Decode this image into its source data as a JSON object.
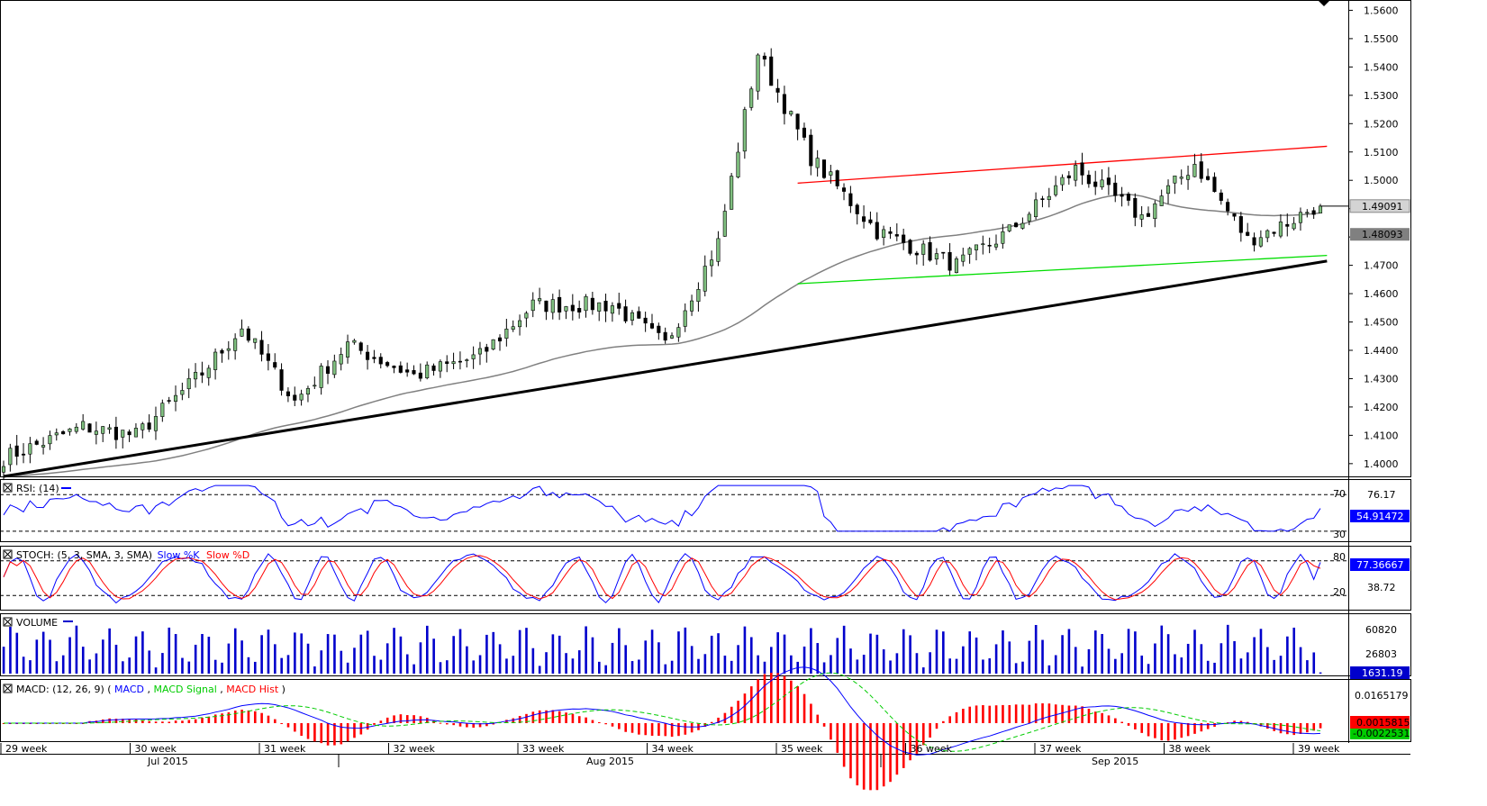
{
  "chart_data": {
    "type": "candlestick",
    "price_axis": {
      "ticks": [
        "1.5600",
        "1.5500",
        "1.5400",
        "1.5300",
        "1.5200",
        "1.5100",
        "1.5000",
        "1.4900",
        "1.4800",
        "1.4700",
        "1.4600",
        "1.4500",
        "1.4400",
        "1.4300",
        "1.4200",
        "1.4100",
        "1.4000"
      ],
      "ylim": [
        1.3955,
        1.563
      ],
      "current_price_label": "1.49091",
      "ma_price_label": "1.48093",
      "current_price": 1.49091,
      "ma_price": 1.48093
    },
    "x_axis": {
      "weeks": [
        "29 week",
        "30 week",
        "31 week",
        "32 week",
        "33 week",
        "34 week",
        "35 week",
        "36 week",
        "37 week",
        "38 week",
        "39 week"
      ],
      "months": [
        "Jul 2015",
        "Aug 2015",
        "Sep 2015"
      ]
    },
    "candles": {
      "count": 200,
      "anchors": [
        [
          0,
          1.402
        ],
        [
          12,
          1.413
        ],
        [
          20,
          1.41
        ],
        [
          30,
          1.432
        ],
        [
          36,
          1.448
        ],
        [
          44,
          1.422
        ],
        [
          52,
          1.442
        ],
        [
          62,
          1.431
        ],
        [
          72,
          1.438
        ],
        [
          80,
          1.456
        ],
        [
          92,
          1.456
        ],
        [
          100,
          1.442
        ],
        [
          108,
          1.478
        ],
        [
          114,
          1.545
        ],
        [
          122,
          1.508
        ],
        [
          132,
          1.482
        ],
        [
          144,
          1.47
        ],
        [
          152,
          1.482
        ],
        [
          162,
          1.504
        ],
        [
          172,
          1.487
        ],
        [
          180,
          1.506
        ],
        [
          188,
          1.479
        ],
        [
          194,
          1.485
        ],
        [
          198,
          1.4905
        ]
      ]
    },
    "trendlines": [
      {
        "color": "#000000",
        "from": [
          0,
          1.3955
        ],
        "to": [
          200,
          1.4715
        ]
      },
      {
        "color": "#ff0000",
        "from": [
          120,
          1.499
        ],
        "to": [
          200,
          1.512
        ]
      },
      {
        "color": "#00dd00",
        "from": [
          120,
          1.4635
        ],
        "to": [
          200,
          1.4735
        ]
      }
    ],
    "sma_color": "#808080",
    "indicators": {
      "rsi": {
        "label": "RSI: (14)",
        "upper": "70",
        "lower": "30",
        "scale_label": "76.17",
        "value_label": "54.91472",
        "value": 54.91472
      },
      "stoch": {
        "label_prefix": "STOCH: (5, 3, SMA, 3, SMA)",
        "k_label": "Slow %K",
        "d_label": "Slow %D",
        "upper": "80",
        "lower": "20",
        "scale_label": "38.72",
        "value_label": "77.36667",
        "value": 77.36667
      },
      "volume": {
        "label": "VOLUME",
        "scale_top": "60820",
        "scale_mid": "26803",
        "value_label": "1631.19",
        "value": 1631.19
      },
      "macd": {
        "label_prefix": "MACD: (12, 26, 9)",
        "macd_label": "MACD",
        "signal_label": "MACD Signal",
        "hist_label": "MACD Hist",
        "scale_label": "0.0165179",
        "value_label": "0.0015815",
        "signal_value_label": "-0.0022531",
        "value": 0.0015815,
        "signal_value": -0.0022531
      }
    },
    "colors": {
      "bull": "#7fbf7f",
      "bear": "#000000",
      "rsi": "#0000ff",
      "stoch_k": "#0000ff",
      "stoch_d": "#ff0000",
      "volume": "#0000cc",
      "macd": "#0000ff",
      "signal": "#00cc00",
      "hist": "#ff0000"
    }
  }
}
